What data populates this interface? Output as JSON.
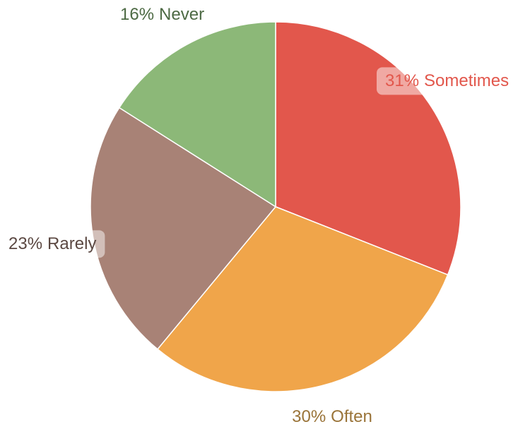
{
  "chart_data": {
    "type": "pie",
    "categories": [
      "Sometimes",
      "Often",
      "Rarely",
      "Never"
    ],
    "values": [
      31,
      30,
      23,
      16
    ],
    "value_labels": [
      "31%",
      "30%",
      "23%",
      "16%"
    ],
    "colors": [
      "#e2574c",
      "#f0a54a",
      "#a88276",
      "#8cb878"
    ],
    "label_colors": [
      "#e2574c",
      "#9a7439",
      "#5b4842",
      "#4d6a44"
    ]
  }
}
